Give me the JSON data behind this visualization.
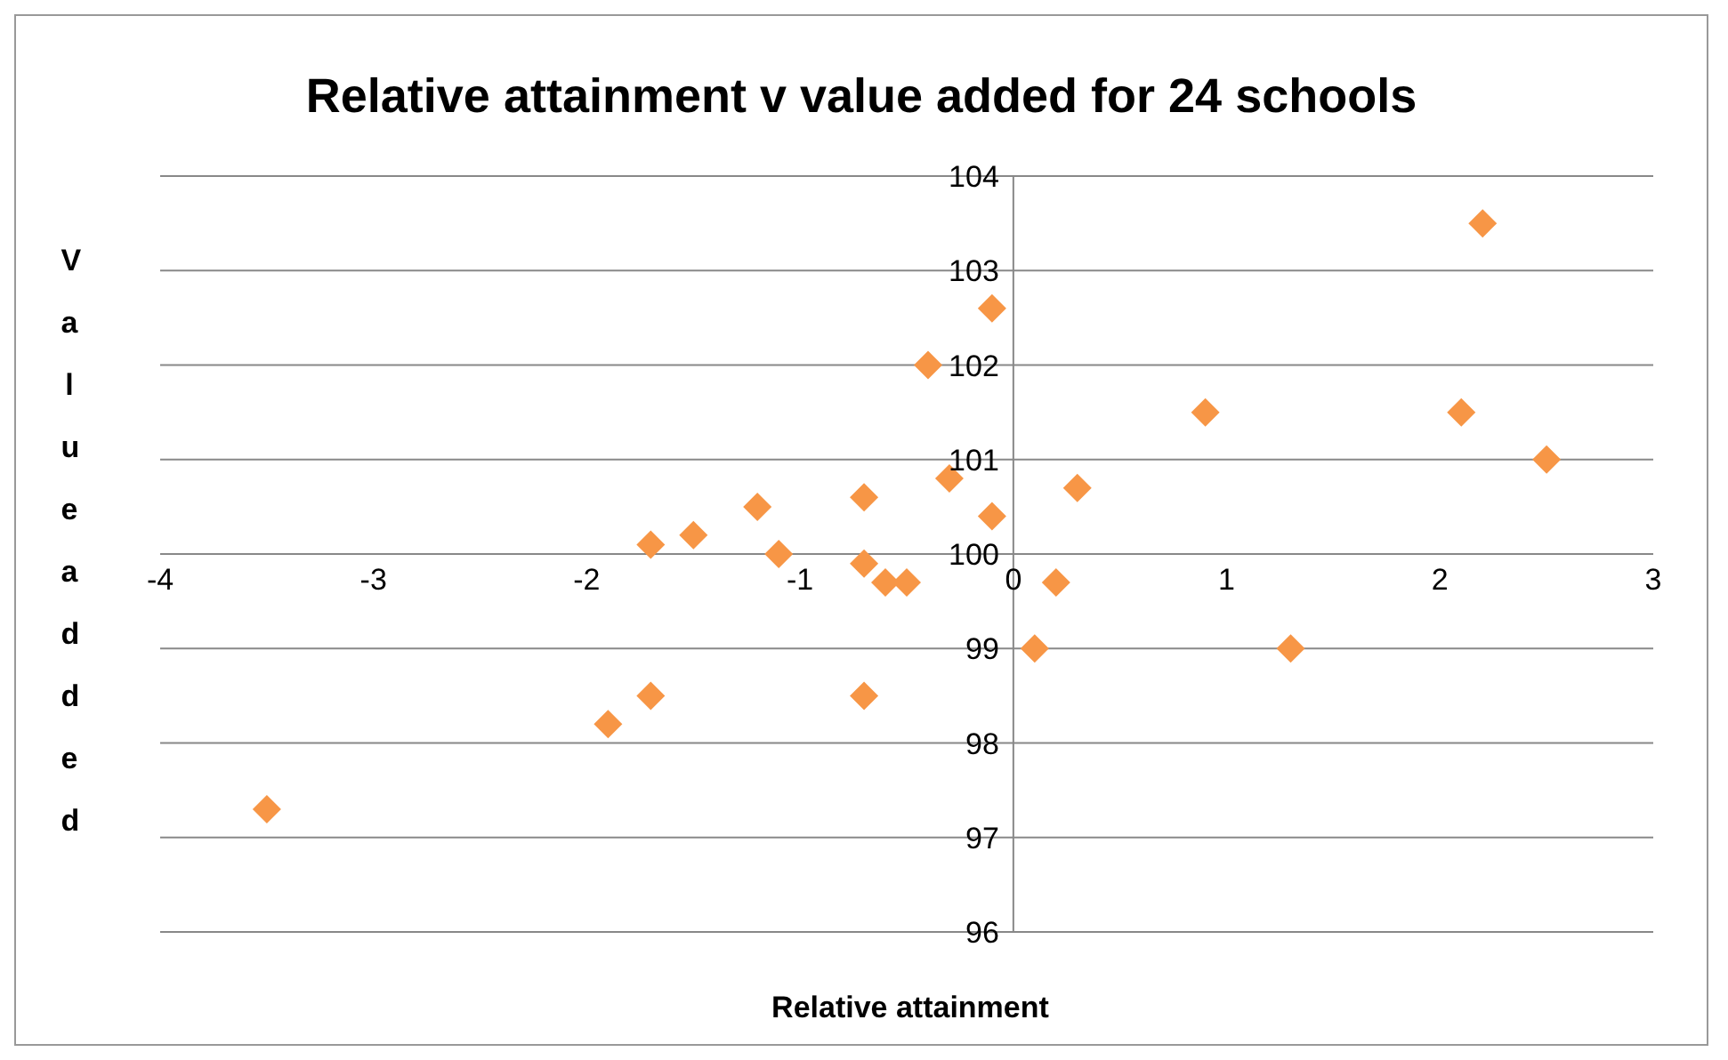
{
  "chart_data": {
    "type": "scatter",
    "title": "Relative attainment v value added for 24 schools",
    "xlabel": "Relative attainment",
    "ylabel": "Value added",
    "x": [
      -3.5,
      -1.9,
      -1.7,
      -1.7,
      -1.5,
      -1.2,
      -1.1,
      -0.7,
      -0.7,
      -0.7,
      -0.6,
      -0.5,
      -0.4,
      -0.3,
      -0.1,
      -0.1,
      0.1,
      0.2,
      0.3,
      0.9,
      1.3,
      2.1,
      2.2,
      2.5
    ],
    "series": [
      {
        "color": "#f79646",
        "values": [
          97.3,
          98.2,
          98.5,
          100.1,
          100.2,
          100.5,
          100.0,
          100.6,
          99.9,
          98.5,
          99.7,
          99.7,
          102.0,
          100.8,
          102.6,
          100.4,
          99.0,
          99.7,
          100.7,
          101.5,
          99.0,
          101.5,
          103.5,
          101.0
        ]
      }
    ],
    "xlim": [
      -4,
      3
    ],
    "xticks": [
      -4,
      -3,
      -2,
      -1,
      0,
      1,
      2,
      3
    ],
    "ylim": [
      96,
      104
    ],
    "yticks": [
      96,
      97,
      98,
      99,
      100,
      101,
      102,
      103,
      104
    ],
    "grid": "y",
    "marker": "diamond"
  }
}
